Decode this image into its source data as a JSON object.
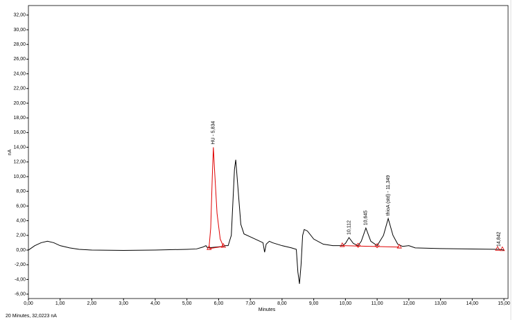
{
  "chart_data": {
    "type": "line",
    "xlabel": "Minutes",
    "ylabel": "nA",
    "footer": "20 Minutes, 32,0223 nA",
    "xlim": [
      0,
      15.13
    ],
    "ylim": [
      -6.6,
      33.3
    ],
    "xticks": [
      {
        "value": 0,
        "label": "0,00"
      },
      {
        "value": 1,
        "label": "1,00"
      },
      {
        "value": 2,
        "label": "2,00"
      },
      {
        "value": 3,
        "label": "3,00"
      },
      {
        "value": 4,
        "label": "4,00"
      },
      {
        "value": 5,
        "label": "5,00"
      },
      {
        "value": 6,
        "label": "6,00"
      },
      {
        "value": 7,
        "label": "7,00"
      },
      {
        "value": 8,
        "label": "8,00"
      },
      {
        "value": 9,
        "label": "9,00"
      },
      {
        "value": 10,
        "label": "10,00"
      },
      {
        "value": 11,
        "label": "11,00"
      },
      {
        "value": 12,
        "label": "12,00"
      },
      {
        "value": 13,
        "label": "13,00"
      },
      {
        "value": 14,
        "label": "14,00"
      },
      {
        "value": 15,
        "label": "15,00"
      }
    ],
    "yticks": [
      {
        "value": -6,
        "label": "-6,00"
      },
      {
        "value": -4,
        "label": "-4,00"
      },
      {
        "value": -2,
        "label": "-2,00"
      },
      {
        "value": 0,
        "label": "0,00"
      },
      {
        "value": 2,
        "label": "2,00"
      },
      {
        "value": 4,
        "label": "4,00"
      },
      {
        "value": 6,
        "label": "6,00"
      },
      {
        "value": 8,
        "label": "8,00"
      },
      {
        "value": 10,
        "label": "10,00"
      },
      {
        "value": 12,
        "label": "12,00"
      },
      {
        "value": 14,
        "label": "14,00"
      },
      {
        "value": 16,
        "label": "16,00"
      },
      {
        "value": 18,
        "label": "18,00"
      },
      {
        "value": 20,
        "label": "20,00"
      },
      {
        "value": 22,
        "label": "22,00"
      },
      {
        "value": 24,
        "label": "24,00"
      },
      {
        "value": 26,
        "label": "26,00"
      },
      {
        "value": 28,
        "label": "28,00"
      },
      {
        "value": 30,
        "label": "30,00"
      },
      {
        "value": 32,
        "label": "32,00"
      }
    ],
    "series": [
      {
        "color": "#000000",
        "x": [
          0,
          0.2,
          0.4,
          0.6,
          0.8,
          1.0,
          1.3,
          1.6,
          2.0,
          3.0,
          4.0,
          5.0,
          5.3,
          5.5,
          5.6,
          5.65,
          6.15,
          6.2,
          6.3,
          6.4,
          6.5,
          6.54,
          6.6,
          6.7,
          6.8,
          7.0,
          7.2,
          7.4,
          7.45,
          7.5,
          7.6,
          7.7,
          8.0,
          8.3,
          8.45,
          8.5,
          8.55,
          8.6,
          8.65,
          8.7,
          8.8,
          9.0,
          9.3,
          9.6,
          9.9,
          10.0,
          10.112,
          10.25,
          10.4,
          10.5,
          10.645,
          10.8,
          11.0,
          11.2,
          11.349,
          11.5,
          11.65,
          11.8,
          12.0,
          12.2,
          13.0,
          14.0,
          14.842,
          15.0
        ],
        "values": [
          0,
          0.6,
          1.0,
          1.2,
          1.0,
          0.6,
          0.3,
          0.1,
          0,
          -0.05,
          0,
          0.1,
          0.15,
          0.4,
          0.6,
          0.3,
          0.5,
          0.6,
          0.6,
          2.0,
          11.0,
          12.3,
          9.0,
          3.5,
          2.2,
          1.8,
          1.4,
          1.0,
          -0.3,
          0.8,
          1.2,
          1.0,
          0.6,
          0.3,
          0.1,
          -3.0,
          -4.6,
          -2.0,
          2.0,
          2.8,
          2.6,
          1.5,
          0.8,
          0.6,
          0.6,
          0.9,
          1.7,
          0.9,
          0.6,
          1.2,
          3.0,
          1.2,
          0.6,
          2.0,
          4.3,
          2.0,
          0.8,
          0.5,
          0.6,
          0.3,
          0.2,
          0.15,
          0.1,
          0
        ]
      },
      {
        "color": "#e00000",
        "x": [
          5.65,
          5.7,
          5.75,
          5.8,
          5.834,
          5.87,
          5.95,
          6.05,
          6.15
        ],
        "values": [
          0.3,
          0.5,
          3.0,
          10.0,
          14.0,
          11.0,
          5.0,
          1.5,
          0.5
        ]
      },
      {
        "color": "#e00000",
        "x": [
          5.7,
          6.15,
          null,
          9.9,
          11.7
        ],
        "values": [
          0.2,
          0.5,
          null,
          0.6,
          0.4
        ]
      }
    ],
    "events": {
      "color": "#e00000",
      "x": [
        5.7,
        6.15,
        9.9,
        10.4,
        11.0,
        11.7,
        14.8,
        14.95
      ],
      "values": [
        0.2,
        0.5,
        0.6,
        0.55,
        0.5,
        0.4,
        0.1,
        0.05
      ],
      "shapes": [
        "triangle",
        "triangle",
        "triangle",
        "diamond",
        "diamond",
        "triangle",
        "triangle",
        "triangle"
      ]
    },
    "annotations": [
      {
        "x": 5.834,
        "y": 14.0,
        "text": "HU - 5,834"
      },
      {
        "x": 10.112,
        "y": 1.7,
        "text": "10,112"
      },
      {
        "x": 10.645,
        "y": 3.0,
        "text": "10,645"
      },
      {
        "x": 11.349,
        "y": 4.3,
        "text": "thioA (std) - 11,349"
      },
      {
        "x": 14.842,
        "y": 0.1,
        "text": "14,842"
      }
    ]
  }
}
